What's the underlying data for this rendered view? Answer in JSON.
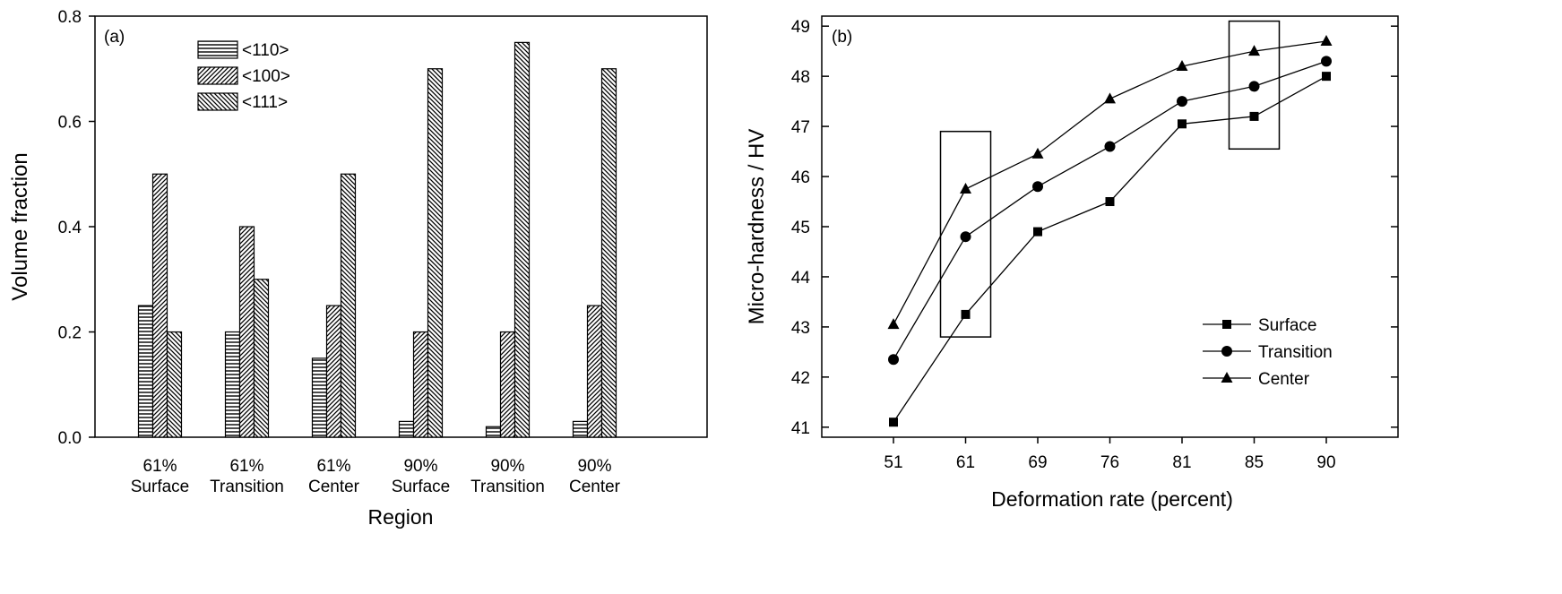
{
  "chart_data": [
    {
      "type": "bar",
      "panel_label": "(a)",
      "xlabel": "Region",
      "ylabel": "Volume fraction",
      "ylim": [
        0,
        0.8
      ],
      "yticks": [
        "0.0",
        "0.2",
        "0.4",
        "0.6",
        "0.8"
      ],
      "categories": [
        [
          "61%",
          "Surface"
        ],
        [
          "61%",
          "Transition"
        ],
        [
          "61%",
          "Center"
        ],
        [
          "90%",
          "Surface"
        ],
        [
          "90%",
          "Transition"
        ],
        [
          "90%",
          "Center"
        ]
      ],
      "series": [
        {
          "name": "<110>",
          "pattern": "horizontal-lines",
          "values": [
            0.25,
            0.2,
            0.15,
            0.03,
            0.02,
            0.03
          ]
        },
        {
          "name": "<100>",
          "pattern": "diagonal-up",
          "values": [
            0.5,
            0.4,
            0.25,
            0.2,
            0.2,
            0.25
          ]
        },
        {
          "name": "<111>",
          "pattern": "diagonal-down",
          "values": [
            0.2,
            0.3,
            0.5,
            0.7,
            0.75,
            0.7
          ]
        }
      ],
      "grid": false,
      "legend_position": "top-left"
    },
    {
      "type": "line",
      "panel_label": "(b)",
      "xlabel": "Deformation rate (percent)",
      "ylabel": "Micro-hardness / HV",
      "x": [
        51,
        61,
        69,
        76,
        81,
        85,
        90
      ],
      "xticks": [
        "51",
        "61",
        "69",
        "76",
        "81",
        "85",
        "90"
      ],
      "ylim": [
        40.8,
        49.2
      ],
      "yticks": [
        "41",
        "42",
        "43",
        "44",
        "45",
        "46",
        "47",
        "48",
        "49"
      ],
      "series": [
        {
          "name": "Surface",
          "marker": "square",
          "values": [
            41.1,
            43.25,
            44.9,
            45.5,
            47.05,
            47.2,
            48.0
          ]
        },
        {
          "name": "Transition",
          "marker": "circle",
          "values": [
            42.35,
            44.8,
            45.8,
            46.6,
            47.5,
            47.8,
            48.3
          ]
        },
        {
          "name": "Center",
          "marker": "triangle",
          "values": [
            43.05,
            45.75,
            46.45,
            47.55,
            48.2,
            48.5,
            48.7
          ]
        }
      ],
      "highlight_boxes": [
        {
          "x_index": 1,
          "y_range": [
            42.8,
            46.9
          ]
        },
        {
          "x_index": 5,
          "y_range": [
            46.55,
            49.1
          ]
        }
      ],
      "grid": false,
      "legend_position": "bottom-right"
    }
  ]
}
